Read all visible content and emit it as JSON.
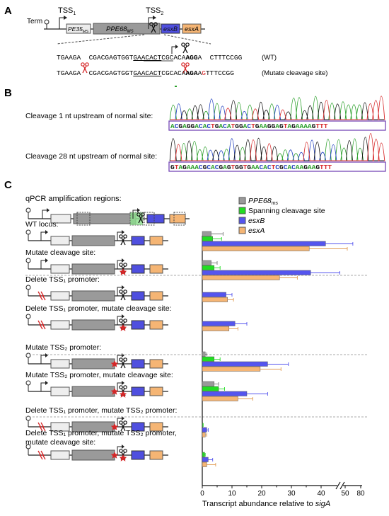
{
  "panel_a": {
    "label": "A",
    "term_label": "Term",
    "tss1_label": "TSS",
    "tss1_sub": "1",
    "tss2_label": "TSS",
    "tss2_sub": "2",
    "gene_pe35": "PE35",
    "gene_pe35_sub": "MS",
    "gene_ppe68": "PPE68",
    "gene_ppe68_sub": "MS",
    "gene_esxb": "esxB",
    "gene_esxa": "esxA",
    "seq_wt_pre": "TGAAGA  CGACGAGTGGT",
    "seq_wt_ul": "GAACACT",
    "seq_wt_mid": "CGCACA",
    "seq_wt_bold": "AGG",
    "seq_wt_post": "A  CTTTCCGG",
    "seq_wt_label": "(WT)",
    "seq_mut_pre": "TGAAGA  CGACGAGTGGT",
    "seq_mut_ul": "GAACACT",
    "seq_mut_mid": "CGCACA",
    "seq_mut_bold": "AGA",
    "seq_mut_a": "A",
    "seq_mut_red": "G",
    "seq_mut_post": "TTTCCGG",
    "seq_mut_label": "(Mutate cleavage site)"
  },
  "panel_b": {
    "label": "B",
    "row1_label": "Cleavage 1 nt upstream of normal site:",
    "row1_seq": "ACGAGGACACTGACATGGACTGAAGGAGTAGAAAAGTTT",
    "row2_label": "Cleavage 28 nt upstream of normal site:",
    "row2_seq": "GTAGAAACGCACGAGTGGTGAACACTCGCACAAGAAGTTT",
    "base_colors": {
      "A": "#2ca02c",
      "C": "#1f3fbf",
      "G": "#111111",
      "T": "#d62728"
    }
  },
  "panel_c": {
    "label": "C",
    "qpcr_title": "qPCR amplification regions:",
    "conditions": [
      {
        "line1": "WT locus:",
        "line2": ""
      },
      {
        "line1": "Mutate cleavage site:",
        "line2": ""
      },
      {
        "line1": "Delete TSS₁ promoter:",
        "line2": ""
      },
      {
        "line1": "Delete TSS₁ promoter, mutate cleavage site:",
        "line2": ""
      },
      {
        "line1": "Mutate TSS₂ promoter:",
        "line2": ""
      },
      {
        "line1": "Mutate TSS₂ promoter, mutate cleavage site:",
        "line2": ""
      },
      {
        "line1": "Delete TSS₁ promoter, mutate TSS₂ promoter:",
        "line2": ""
      },
      {
        "line1": "Delete TSS₁ promoter, mutate TSS₂ promoter,",
        "line2": "mutate cleavage site:"
      }
    ],
    "legend": [
      "PPE68",
      "Spanning cleavage site",
      "esxB",
      "esxA"
    ],
    "legend_sub": "ms"
  },
  "chart_data": {
    "type": "bar",
    "orientation": "horizontal",
    "xlabel": "Transcript abundance relative to ",
    "xlabel_italic": "sigA",
    "xticks": [
      "0",
      "10",
      "20",
      "30",
      "40",
      "50",
      "80"
    ],
    "axis_break": [
      45,
      48
    ],
    "series": [
      {
        "name": "PPE68ms",
        "color": "#999999",
        "values": [
          3,
          3,
          0,
          0,
          1,
          4,
          0,
          0
        ],
        "errors": [
          4,
          2,
          0,
          0,
          0.5,
          1.5,
          0,
          0
        ]
      },
      {
        "name": "Spanning cleavage site",
        "color": "#22dd22",
        "values": [
          3.5,
          4,
          0,
          0,
          4,
          5.5,
          0.2,
          0.8
        ],
        "errors": [
          3,
          2,
          0,
          0,
          2,
          2,
          0.1,
          0.2
        ]
      },
      {
        "name": "esxB",
        "color": "#5555ee",
        "values": [
          41.5,
          36.5,
          8,
          11,
          22,
          15,
          1.5,
          2
        ],
        "errors": [
          11,
          10,
          2,
          4,
          7,
          7,
          0.5,
          1.5
        ]
      },
      {
        "name": "esxA",
        "color": "#f5b574",
        "values": [
          36,
          26,
          8.5,
          9,
          19.5,
          12,
          1,
          1.5
        ],
        "errors": [
          14,
          6,
          2,
          3,
          7,
          5,
          0.5,
          3
        ]
      }
    ]
  }
}
